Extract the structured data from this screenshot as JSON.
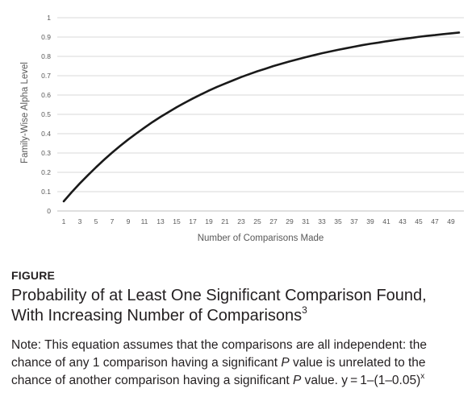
{
  "chart_data": {
    "type": "line",
    "xlabel": "Number of Comparisons Made",
    "ylabel": "Family-Wise Alpha Level",
    "ylim": [
      0,
      1
    ],
    "xlim": [
      1,
      50
    ],
    "y_ticks": [
      "0",
      "0.1",
      "0.2",
      "0.3",
      "0.4",
      "0.5",
      "0.6",
      "0.7",
      "0.8",
      "0.9",
      "1"
    ],
    "x_ticks": [
      "1",
      "3",
      "5",
      "7",
      "9",
      "11",
      "13",
      "15",
      "17",
      "19",
      "21",
      "23",
      "25",
      "27",
      "29",
      "31",
      "33",
      "35",
      "37",
      "39",
      "41",
      "43",
      "45",
      "47",
      "49"
    ],
    "grid": "horizontal",
    "legend": "none",
    "series": [
      {
        "formula": "y = 1 - (1 - 0.05)^x",
        "color": "#1a1a1a",
        "x": [
          1,
          2,
          3,
          4,
          5,
          6,
          7,
          8,
          9,
          10,
          11,
          12,
          13,
          14,
          15,
          16,
          17,
          18,
          19,
          20,
          21,
          22,
          23,
          24,
          25,
          26,
          27,
          28,
          29,
          30,
          31,
          32,
          33,
          34,
          35,
          36,
          37,
          38,
          39,
          40,
          41,
          42,
          43,
          44,
          45,
          46,
          47,
          48,
          49,
          50
        ],
        "values": [
          0.05,
          0.098,
          0.143,
          0.185,
          0.226,
          0.265,
          0.302,
          0.337,
          0.37,
          0.401,
          0.431,
          0.46,
          0.487,
          0.512,
          0.537,
          0.56,
          0.582,
          0.603,
          0.623,
          0.642,
          0.659,
          0.676,
          0.693,
          0.708,
          0.723,
          0.736,
          0.75,
          0.762,
          0.774,
          0.785,
          0.796,
          0.806,
          0.816,
          0.825,
          0.834,
          0.842,
          0.85,
          0.858,
          0.865,
          0.871,
          0.878,
          0.884,
          0.89,
          0.895,
          0.901,
          0.906,
          0.91,
          0.915,
          0.919,
          0.923
        ]
      }
    ]
  },
  "caption": {
    "label": "FIGURE",
    "title_line1": "Probability of at Least One Significant Comparison Found,",
    "title_line2": "With Increasing Number of Comparisons",
    "title_ref": "3",
    "note_line1": "Note: This equation assumes that the comparisons are all independent: the",
    "note_line2_a": "chance of any 1 comparison having a significant ",
    "note_italic_p": "P",
    "note_line2_b": " value is unrelated to the",
    "note_line3_a": "chance of another comparison having a significant ",
    "note_line3_b": " value. y = 1–(1–0.05)",
    "note_exponent": "x"
  }
}
